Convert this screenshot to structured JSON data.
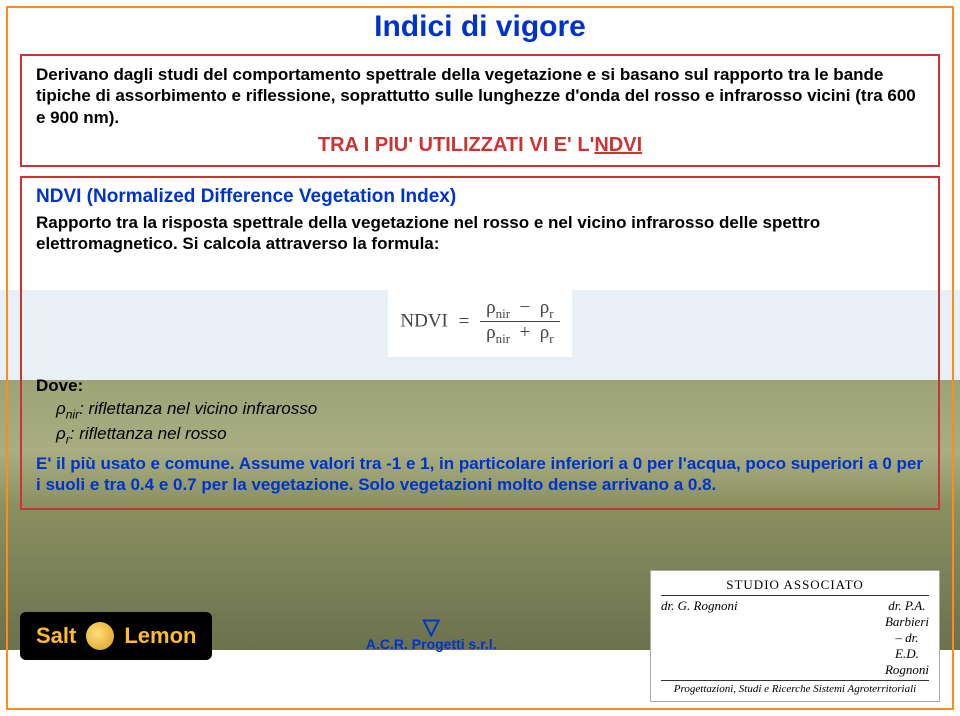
{
  "title": "Indici di vigore",
  "box1": {
    "text": "Derivano dagli studi del comportamento spettrale della vegetazione e si basano sul rapporto tra le bande tipiche di assorbimento e riflessione, soprattutto sulle lunghezze d'onda del rosso e infrarosso vicini (tra 600 e 900 nm).",
    "subline_prefix": "TRA I PIU' UTILIZZATI VI E' L'",
    "subline_link": "NDVI"
  },
  "box2": {
    "ndvi_title": "NDVI (Normalized Difference Vegetation Index)",
    "rapporto": "Rapporto tra la risposta spettrale della vegetazione nel rosso e nel vicino infrarosso delle spettro elettromagnetico. Si calcola attraverso la formula:",
    "formula": {
      "lhs": "NDVI",
      "num_a": "ρ",
      "num_a_sub": "nir",
      "num_b": "ρ",
      "num_b_sub": "r",
      "den_a": "ρ",
      "den_a_sub": "nir",
      "den_b": "ρ",
      "den_b_sub": "r"
    },
    "dove_label": "Dove:",
    "rho_nir_sym": "ρ",
    "rho_nir_sub": "nir",
    "rho_nir_txt": ": riflettanza nel vicino infrarosso",
    "rho_r_sym": "ρ",
    "rho_r_sub": "r",
    "rho_r_txt": ": riflettanza nel rosso",
    "conclusion": "E' il più usato e comune. Assume valori tra -1 e 1, in particolare inferiori a 0 per l'acqua, poco superiori a 0 per i suoli e tra 0.4 e 0.7 per la vegetazione. Solo vegetazioni molto dense arrivano a 0.8."
  },
  "footer": {
    "salt": "Salt",
    "lemon": "Lemon",
    "acr": "A.C.R. Progetti s.r.l.",
    "studio_title": "STUDIO ASSOCIATO",
    "studio_name1": "dr. G. Rognoni",
    "studio_dash": "—",
    "studio_name2": "dr. P.A. Barbieri – dr. E.D. Rognoni",
    "studio_sub": "Progettazioni, Studi e Ricerche Sistemi Agroterritoriali"
  }
}
